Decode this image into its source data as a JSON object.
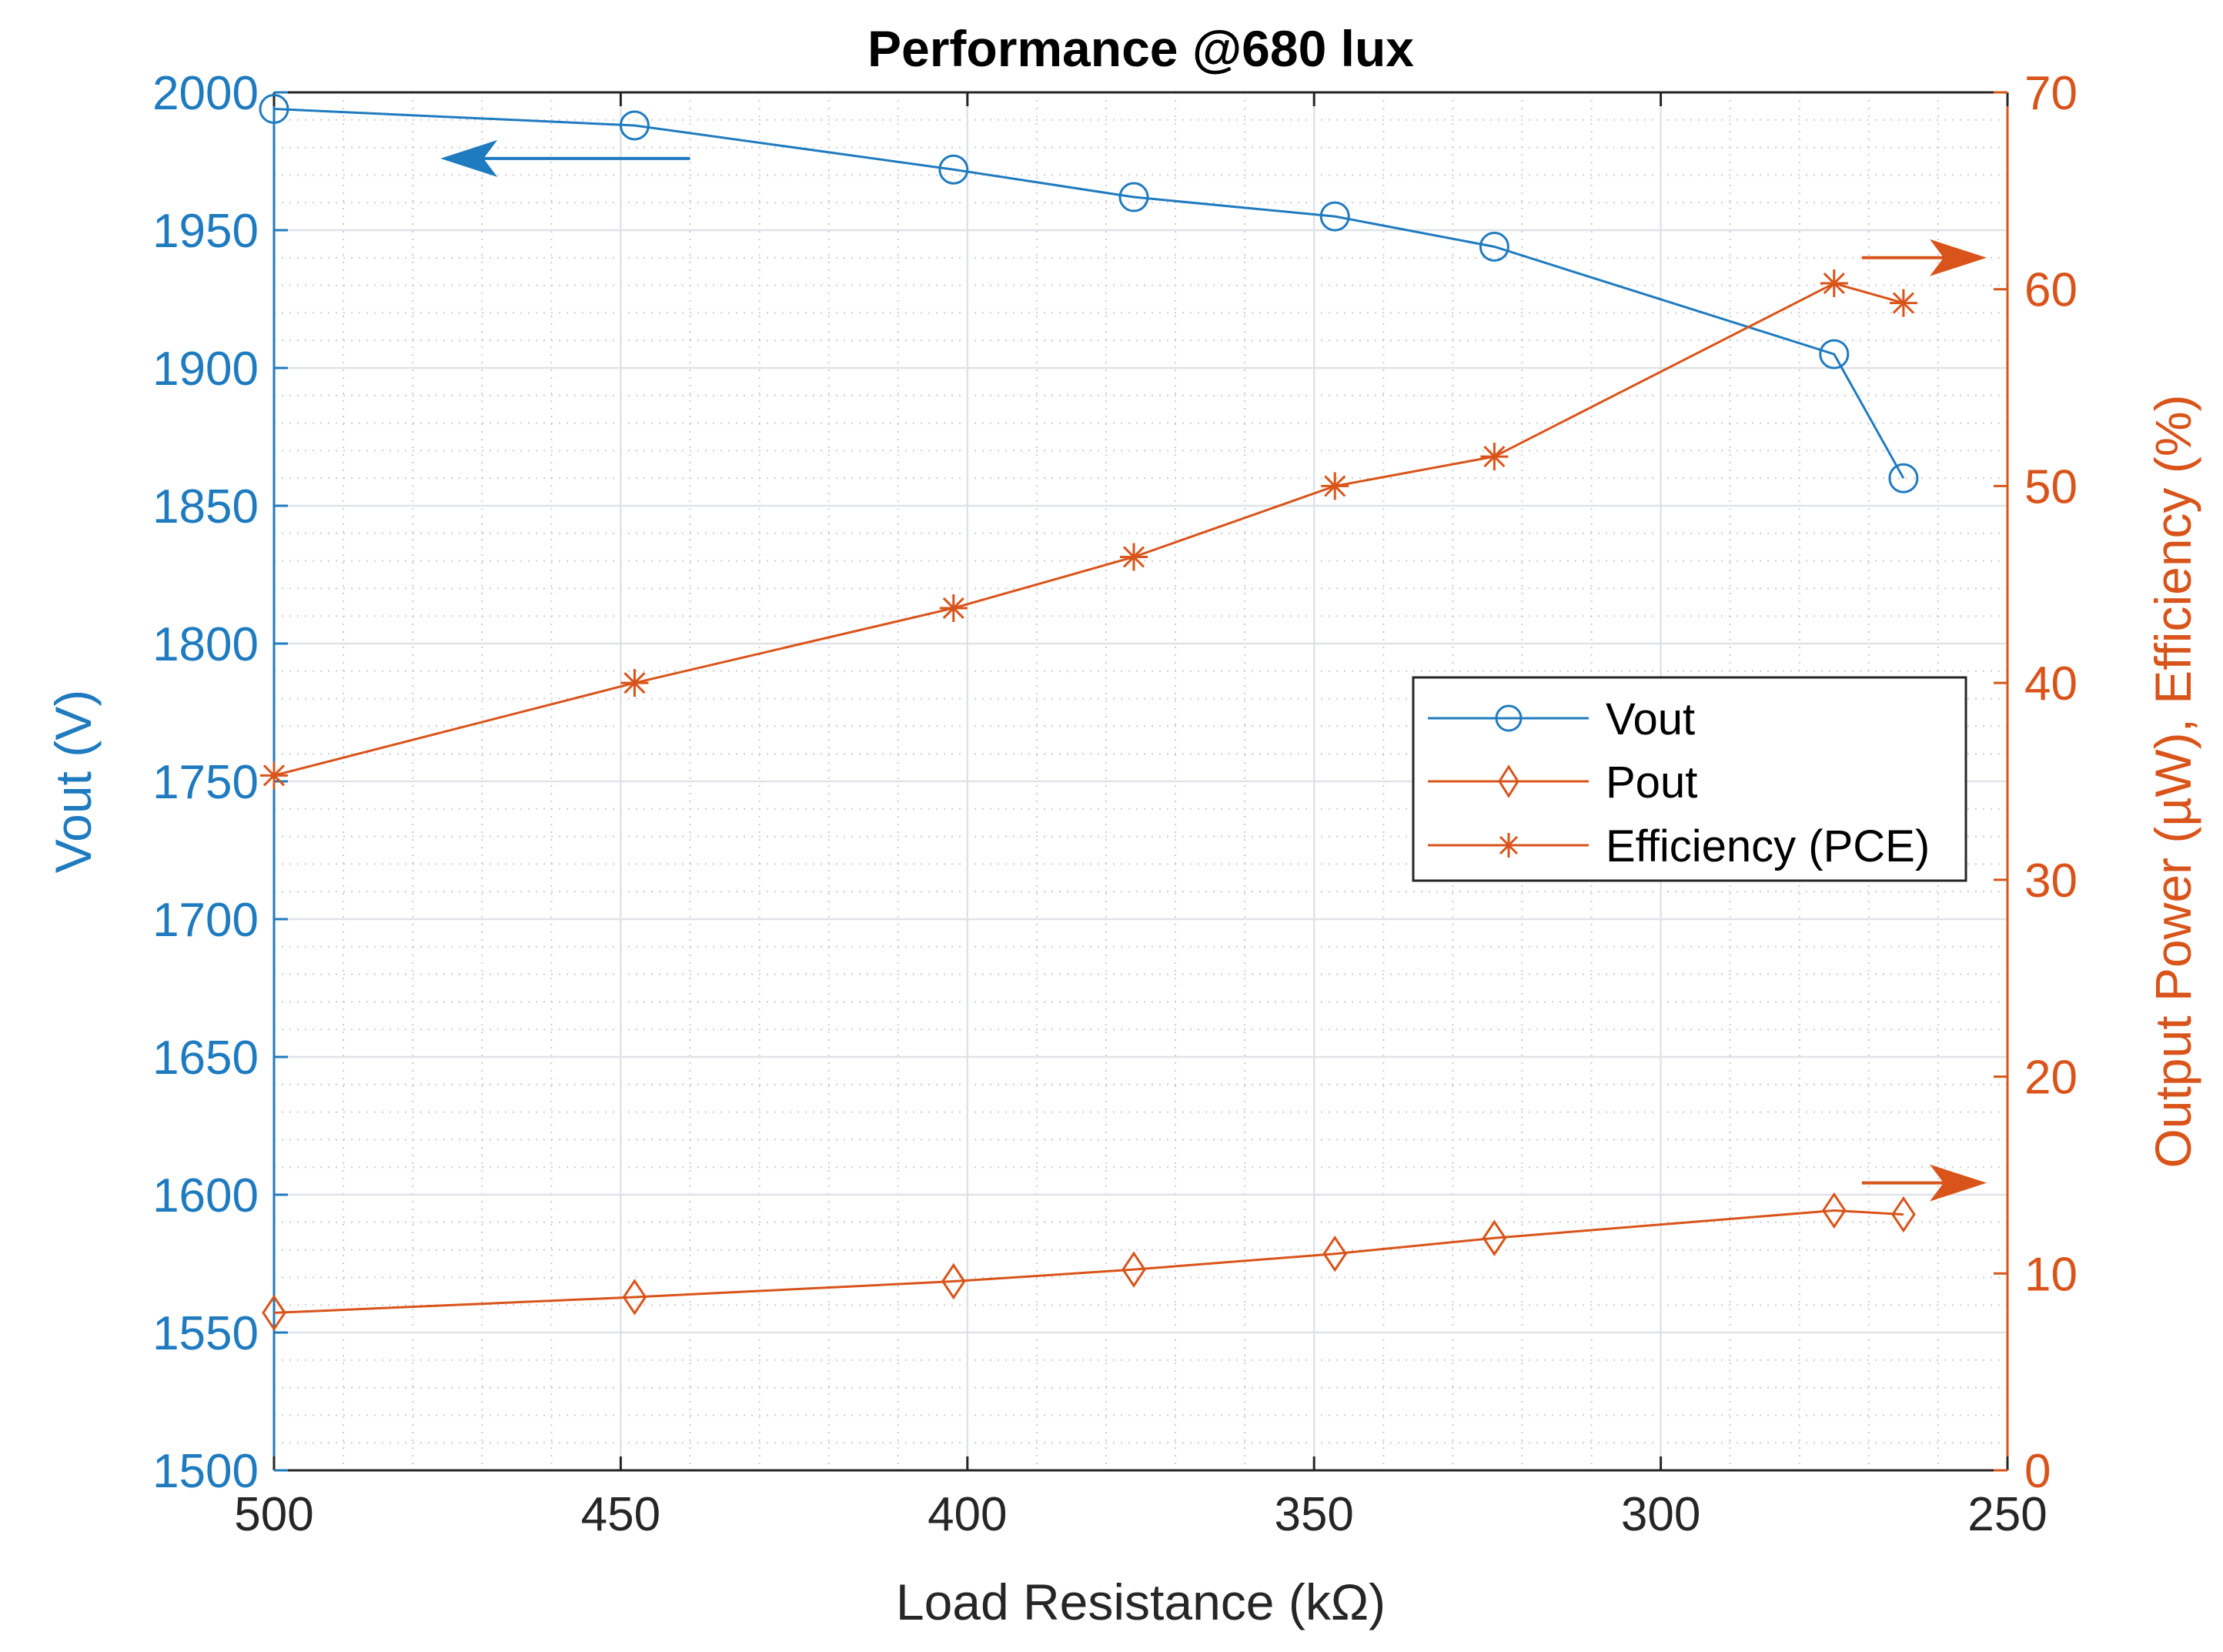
{
  "chart_data": {
    "type": "line",
    "title": "Performance @680 lux",
    "xlabel": "Load Resistance (kΩ)",
    "ylabel_left": "Vout (V)",
    "ylabel_right": "Output Power (µW), Efficiency (%)",
    "xlim": [
      500,
      250
    ],
    "x_reversed": true,
    "ylim_left": [
      1500,
      2000
    ],
    "ylim_right": [
      0,
      70
    ],
    "x_ticks": [
      "500",
      "450",
      "400",
      "350",
      "300",
      "250"
    ],
    "y_left_ticks": [
      "1500",
      "1550",
      "1600",
      "1650",
      "1700",
      "1750",
      "1800",
      "1850",
      "1900",
      "1950",
      "2000"
    ],
    "y_right_ticks": [
      "0",
      "10",
      "20",
      "30",
      "40",
      "50",
      "60",
      "70"
    ],
    "grid": true,
    "legend_position": "center-right",
    "colors": {
      "left_axis": "#1f7bbf",
      "right_axis": "#d9541a",
      "vout": "#1f7bbf",
      "pout": "#d9541a",
      "efficiency": "#d9541a"
    },
    "series": [
      {
        "name": "Vout",
        "axis": "left",
        "marker": "circle",
        "x": [
          500,
          448,
          402,
          376,
          347,
          324,
          275,
          265
        ],
        "values": [
          1994,
          1988,
          1972,
          1962,
          1955,
          1944,
          1905,
          1860
        ]
      },
      {
        "name": "Pout",
        "axis": "right",
        "marker": "diamond",
        "x": [
          500,
          448,
          402,
          376,
          347,
          324,
          275,
          265
        ],
        "values": [
          8,
          8.8,
          9.6,
          10.2,
          11,
          11.8,
          13.2,
          13
        ]
      },
      {
        "name": "Efficiency (PCE)",
        "axis": "right",
        "marker": "asterisk",
        "x": [
          500,
          448,
          402,
          376,
          347,
          324,
          275,
          265
        ],
        "values": [
          35.3,
          40,
          43.8,
          46.4,
          50,
          51.5,
          60.3,
          59.3
        ]
      }
    ]
  }
}
